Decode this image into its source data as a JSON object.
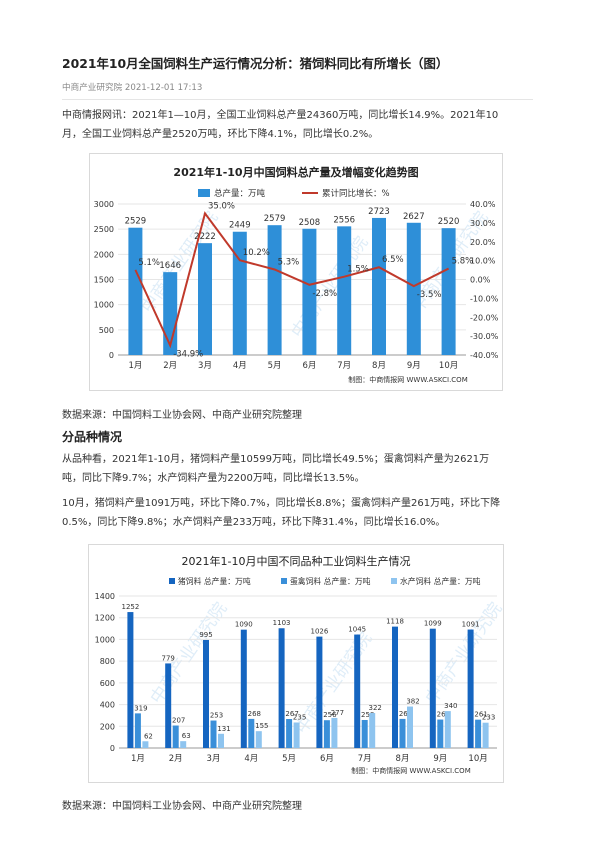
{
  "article": {
    "title": "2021年10月全国饲料生产运行情况分析：猪饲料同比有所增长（图）",
    "source": "中商产业研究院",
    "date": "2021-12-01 17:13",
    "intro_lines": [
      "中商情报网讯：2021年1—10月，全国工业饲料总产量24360万吨，同比增长14.9%。2021年10",
      "月，全国工业饲料总产量2520万吨，环比下降4.1%，同比增长0.2%。"
    ],
    "data_source_1": "数据来源：中国饲料工业协会网、中商产业研究院整理",
    "section_heading": "分品种情况",
    "para2_lines": [
      "从品种看，2021年1-10月，猪饲料产量10599万吨，同比增长49.5%；蛋禽饲料产量为2621万",
      "吨，同比下降9.7%；水产饲料产量为2200万吨，同比增长13.5%。"
    ],
    "para3_lines": [
      "10月，猪饲料产量1091万吨，环比下降0.7%，同比增长8.8%；蛋禽饲料产量261万吨，环比下降",
      "0.5%，同比下降9.8%；水产饲料产量233万吨，环比下降31.4%，同比增长16.0%。"
    ],
    "data_source_2": "数据来源：中国饲料工业协会网、中商产业研究院整理"
  },
  "chart_data": [
    {
      "type": "bar",
      "title": "2021年1-10月中国饲料总产量及增幅变化趋势图",
      "categories": [
        "1月",
        "2月",
        "3月",
        "4月",
        "5月",
        "6月",
        "7月",
        "8月",
        "9月",
        "10月"
      ],
      "series": [
        {
          "name": "总产量：万吨",
          "type": "bar",
          "axis": "left",
          "values": [
            2529,
            1646,
            2222,
            2449,
            2579,
            2508,
            2556,
            2723,
            2627,
            2520
          ],
          "labels": [
            "2529",
            "1646",
            "2222",
            "2449",
            "2579",
            "2508",
            "2556",
            "2723",
            "2627",
            "2520"
          ]
        },
        {
          "name": "累计同比增长：%",
          "type": "line",
          "axis": "right",
          "values": [
            5.1,
            -34.9,
            35.0,
            10.2,
            5.3,
            -2.8,
            1.5,
            6.5,
            -3.5,
            5.8
          ],
          "labels": [
            "5.1%",
            "-34.9%",
            "35.0%",
            "10.2%",
            "5.3%",
            "-2.8%",
            "1.5%",
            "6.5%",
            "-3.5%",
            "5.8%"
          ]
        }
      ],
      "y_left": {
        "min": 0,
        "max": 3000,
        "ticks": [
          "0",
          "500",
          "1000",
          "1500",
          "2000",
          "2500",
          "3000"
        ]
      },
      "y_right": {
        "min": -40,
        "max": 40,
        "ticks": [
          "-40.0%",
          "-30.0%",
          "-20.0%",
          "-10.0%",
          "0.0%",
          "10.0%",
          "20.0%",
          "30.0%",
          "40.0%"
        ]
      },
      "grid": true,
      "legend": "top",
      "credit": "制图：中商情报网 WWW.ASKCI.COM",
      "watermark": "中商产业研究院",
      "colors": {
        "bar": "#2e8fd8",
        "line": "#c0392b"
      }
    },
    {
      "type": "bar",
      "title": "2021年1-10月中国不同品种工业饲料生产情况",
      "categories": [
        "1月",
        "2月",
        "3月",
        "4月",
        "5月",
        "6月",
        "7月",
        "8月",
        "9月",
        "10月"
      ],
      "series": [
        {
          "name": "猪饲料 总产量：万吨",
          "values": [
            1252,
            779,
            995,
            1090,
            1103,
            1026,
            1045,
            1118,
            1099,
            1091
          ]
        },
        {
          "name": "蛋禽饲料 总产量：万吨",
          "values": [
            319,
            207,
            253,
            268,
            267,
            256,
            258,
            268,
            262,
            261
          ]
        },
        {
          "name": "水产饲料 总产量：万吨",
          "values": [
            62,
            63,
            131,
            155,
            235,
            277,
            322,
            382,
            340,
            233
          ]
        }
      ],
      "y": {
        "min": 0,
        "max": 1400,
        "ticks": [
          "0",
          "200",
          "400",
          "600",
          "800",
          "1000",
          "1200",
          "1400"
        ]
      },
      "grid": true,
      "legend": "top",
      "credit": "制图：中商情报网 WWW.ASKCI.COM",
      "watermark": "中商产业研究院",
      "colors": {
        "s1": "#1565c0",
        "s2": "#3a8fd9",
        "s3": "#8ec4ef"
      }
    }
  ]
}
